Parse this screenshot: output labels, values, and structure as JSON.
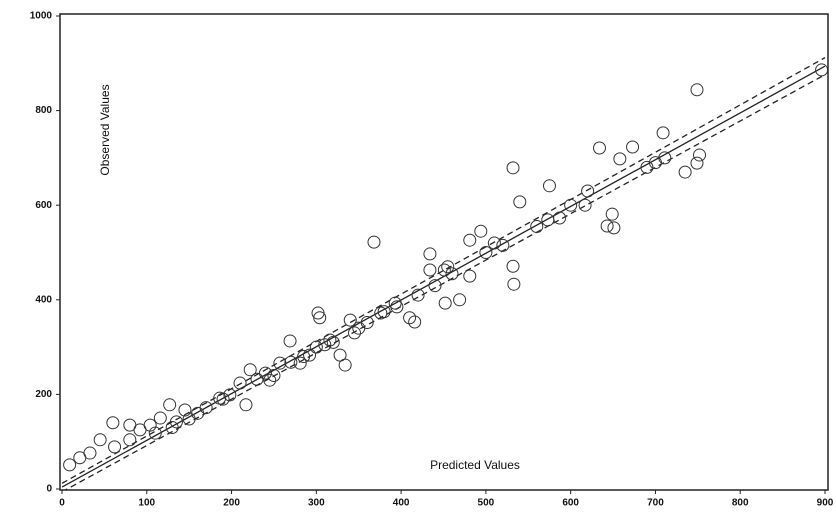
{
  "chart_data": {
    "type": "scatter",
    "x_label": "Predicted Values",
    "y_label": "Observed Values",
    "xlim": [
      0,
      900
    ],
    "ylim": [
      0,
      1000
    ],
    "xticks": [
      0,
      100,
      200,
      300,
      400,
      500,
      600,
      700,
      800,
      900
    ],
    "yticks": [
      0,
      200,
      400,
      600,
      800,
      1000
    ],
    "marker_color": "#333333",
    "x": [
      896,
      749,
      709,
      634,
      673,
      532,
      658,
      711,
      752,
      735,
      749,
      575,
      540,
      573,
      649,
      643,
      651,
      617,
      587,
      368,
      494,
      532,
      533,
      481,
      434,
      434,
      451,
      481,
      469,
      452,
      393,
      376,
      410,
      416,
      302,
      304,
      340,
      269,
      316,
      328,
      334,
      292,
      281,
      257,
      222,
      210,
      245,
      198,
      217,
      186,
      145,
      127,
      104,
      116,
      80,
      60,
      45,
      33,
      9,
      21,
      80,
      62,
      92,
      130,
      150,
      170,
      190,
      230,
      250,
      270,
      300,
      320,
      350,
      360,
      380,
      420,
      440,
      460,
      500,
      520,
      560,
      600,
      620,
      690,
      700,
      110,
      135,
      160,
      240,
      285,
      310,
      345,
      395,
      455,
      510
    ],
    "values": [
      886,
      844,
      753,
      721,
      723,
      679,
      698,
      700,
      706,
      670,
      689,
      641,
      607,
      569,
      581,
      556,
      552,
      600,
      573,
      522,
      545,
      471,
      433,
      526,
      497,
      463,
      463,
      450,
      400,
      393,
      393,
      372,
      362,
      353,
      372,
      362,
      357,
      313,
      315,
      283,
      262,
      283,
      266,
      266,
      252,
      224,
      230,
      199,
      178,
      192,
      167,
      178,
      135,
      150,
      135,
      140,
      104,
      76,
      51,
      66,
      104,
      89,
      125,
      130,
      148,
      172,
      190,
      232,
      240,
      268,
      300,
      310,
      340,
      352,
      375,
      410,
      430,
      455,
      500,
      515,
      555,
      600,
      630,
      680,
      690,
      118,
      142,
      160,
      245,
      280,
      305,
      330,
      385,
      470,
      520
    ],
    "lines": [
      {
        "x": [
          0,
          900
        ],
        "values": [
          4,
          894
        ],
        "dashed": false
      },
      {
        "x": [
          0,
          900
        ],
        "values": [
          12,
          912
        ],
        "dashed": true
      },
      {
        "x": [
          0,
          900
        ],
        "values": [
          -6,
          876
        ],
        "dashed": true
      }
    ]
  }
}
